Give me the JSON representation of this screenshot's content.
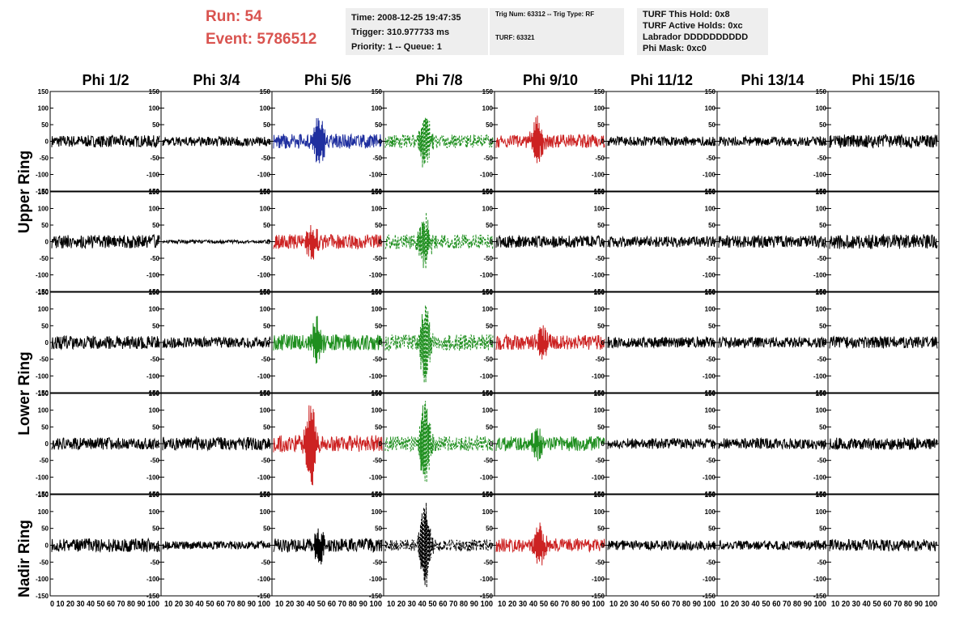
{
  "header": {
    "run_label": "Run:    54",
    "event_label": "Event: 5786512",
    "time_line": "Time: 2008-12-25 19:47:35",
    "trigger_line": "Trigger: 310.977733 ms",
    "priority_line": "Priority: 1 -- Queue: 1",
    "trig_num_line": "Trig Num: 63312 -- Trig Type: RF",
    "turf_line": "TURF: 63321",
    "turf_hold_line": "TURF This Hold: 0x8",
    "turf_active_line": "TURF Active Holds: 0xc",
    "labrador_line": "Labrador DDDDDDDDDD",
    "phi_mask_line": "Phi Mask: 0xc0"
  },
  "chart_data": {
    "type": "line",
    "columns": [
      "Phi 1/2",
      "Phi 3/4",
      "Phi 5/6",
      "Phi 7/8",
      "Phi 9/10",
      "Phi 11/12",
      "Phi 13/14",
      "Phi 15/16"
    ],
    "rows": [
      "Upper Ring",
      "Upper Ring",
      "Lower Ring",
      "Lower Ring",
      "Nadir Ring"
    ],
    "row_group_labels": [
      "Upper Ring",
      "Lower Ring",
      "Nadir Ring"
    ],
    "xlim": [
      0,
      100
    ],
    "ylim": [
      -150,
      150
    ],
    "y_ticks": [
      "150",
      "100",
      "50",
      "0",
      "-50",
      "-100",
      "-150"
    ],
    "x_tick_text": [
      "0 10 20 30 40 50 60 70 80 90 100",
      "10 20 30 40 50 60 70 80 90 100",
      "10 20 30 40 50 60 70 80 90 100",
      "10 20 30 40 50 60 70 80 90 100",
      "10 20 30 40 50 60 70 80 90 100",
      "10 20 30 40 50 60 70 80 90 100",
      "10 20 30 40 50 60 70 80 90 100",
      "10 20 30 40 50 60 70 80 90 100"
    ],
    "colors": {
      "black": "#000000",
      "blue": "#1f2f9f",
      "green": "#1f8f1f",
      "red": "#cc2222"
    },
    "panels": [
      [
        {
          "color": "black",
          "amp": 18
        },
        {
          "color": "black",
          "amp": 14
        },
        {
          "color": "blue",
          "amp": 22,
          "peak": 75,
          "peak_at": 42,
          "dashed": false
        },
        {
          "color": "green",
          "amp": 20,
          "peak": 85,
          "peak_at": 37,
          "dashed": true
        },
        {
          "color": "red",
          "amp": 20,
          "peak": 70,
          "peak_at": 38,
          "dashed": false
        },
        {
          "color": "black",
          "amp": 14
        },
        {
          "color": "black",
          "amp": 14
        },
        {
          "color": "black",
          "amp": 20
        }
      ],
      [
        {
          "color": "black",
          "amp": 20
        },
        {
          "color": "black",
          "amp": 5
        },
        {
          "color": "red",
          "amp": 22,
          "peak": 55,
          "peak_at": 35,
          "dashed": false
        },
        {
          "color": "green",
          "amp": 22,
          "peak": 80,
          "peak_at": 37,
          "dashed": true
        },
        {
          "color": "black",
          "amp": 18
        },
        {
          "color": "black",
          "amp": 16
        },
        {
          "color": "black",
          "amp": 18
        },
        {
          "color": "black",
          "amp": 22
        }
      ],
      [
        {
          "color": "black",
          "amp": 20
        },
        {
          "color": "black",
          "amp": 16
        },
        {
          "color": "green",
          "amp": 24,
          "peak": 60,
          "peak_at": 40,
          "dashed": false
        },
        {
          "color": "green",
          "amp": 24,
          "peak": 120,
          "peak_at": 37,
          "dashed": true
        },
        {
          "color": "red",
          "amp": 22,
          "peak": 40,
          "peak_at": 43,
          "dashed": false
        },
        {
          "color": "black",
          "amp": 16
        },
        {
          "color": "black",
          "amp": 16
        },
        {
          "color": "black",
          "amp": 18
        }
      ],
      [
        {
          "color": "black",
          "amp": 18
        },
        {
          "color": "black",
          "amp": 20
        },
        {
          "color": "red",
          "amp": 26,
          "peak": 125,
          "peak_at": 34,
          "dashed": false
        },
        {
          "color": "green",
          "amp": 22,
          "peak": 130,
          "peak_at": 37,
          "dashed": true
        },
        {
          "color": "green",
          "amp": 22,
          "peak": 40,
          "peak_at": 38,
          "dashed": false
        },
        {
          "color": "black",
          "amp": 16
        },
        {
          "color": "black",
          "amp": 16
        },
        {
          "color": "black",
          "amp": 18
        }
      ],
      [
        {
          "color": "black",
          "amp": 20
        },
        {
          "color": "black",
          "amp": 12
        },
        {
          "color": "black",
          "amp": 20,
          "peak": 45,
          "peak_at": 42,
          "dashed": false
        },
        {
          "color": "black",
          "amp": 18,
          "peak": 130,
          "peak_at": 37,
          "dashed": true
        },
        {
          "color": "red",
          "amp": 20,
          "peak": 60,
          "peak_at": 40,
          "dashed": false
        },
        {
          "color": "black",
          "amp": 14
        },
        {
          "color": "black",
          "amp": 14
        },
        {
          "color": "black",
          "amp": 18
        }
      ]
    ]
  }
}
